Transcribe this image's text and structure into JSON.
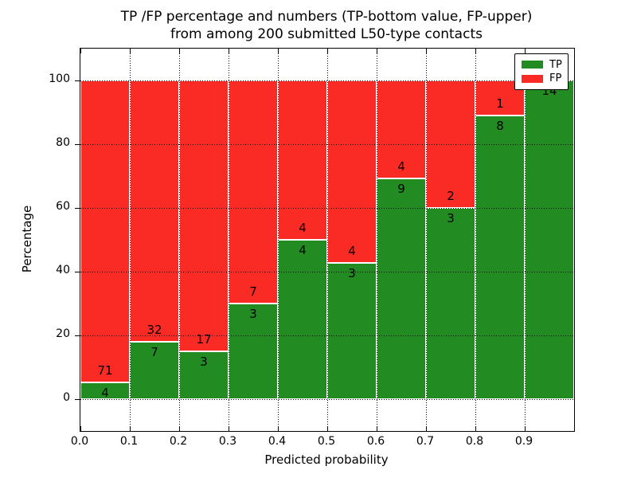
{
  "title": {
    "line1": "TP /FP percentage and numbers (TP-bottom value, FP-upper)",
    "line2": "from among 200 submitted L50-type contacts"
  },
  "legend": {
    "items": [
      {
        "label": "TP",
        "color": "#228b22"
      },
      {
        "label": "FP",
        "color": "#fa2b25"
      }
    ]
  },
  "chart_data": {
    "type": "bar",
    "stacked": true,
    "title": "TP /FP percentage and numbers (TP-bottom value, FP-upper) from among 200 submitted L50-type contacts",
    "xlabel": "Predicted probability",
    "ylabel": "Percentage",
    "xlim": [
      0.0,
      1.0
    ],
    "ylim": [
      -10,
      110
    ],
    "grid": "dotted black, on",
    "legend_position": "upper right",
    "bin_width": 0.1,
    "categories": [
      "0.0-0.1",
      "0.1-0.2",
      "0.2-0.3",
      "0.3-0.4",
      "0.4-0.5",
      "0.5-0.6",
      "0.6-0.7",
      "0.7-0.8",
      "0.8-0.9",
      "0.9-1.0"
    ],
    "x_tick_labels": [
      "0.0",
      "0.1",
      "0.2",
      "0.3",
      "0.4",
      "0.5",
      "0.6",
      "0.7",
      "0.8",
      "0.9"
    ],
    "y_tick_labels": [
      "0",
      "20",
      "40",
      "60",
      "80",
      "100"
    ],
    "y_ticks": [
      0,
      20,
      40,
      60,
      80,
      100
    ],
    "series": [
      {
        "name": "TP",
        "color": "#228b22",
        "counts": [
          4,
          7,
          3,
          3,
          4,
          3,
          9,
          3,
          8,
          14
        ]
      },
      {
        "name": "FP",
        "color": "#fa2b25",
        "counts": [
          71,
          32,
          17,
          7,
          4,
          4,
          4,
          2,
          1,
          0
        ]
      }
    ],
    "tp_percent": [
      5.3,
      17.9,
      15.0,
      30.0,
      50.0,
      42.9,
      69.2,
      60.0,
      88.9,
      100.0
    ],
    "annotation_note": "TP count below boundary, FP count above boundary, per bar"
  }
}
